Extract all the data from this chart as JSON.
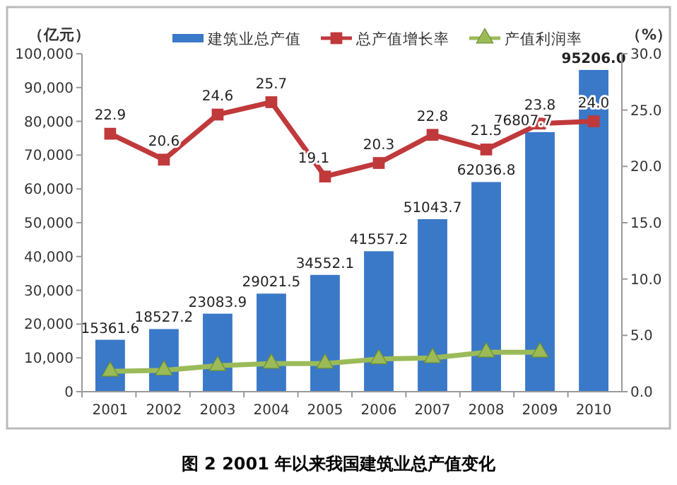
{
  "chart_data": {
    "type": "bar",
    "title": "图 2 2001 年以来我国建筑业总产值变化",
    "ylabel": "（亿元）",
    "y2label": "（%）",
    "categories": [
      "2001",
      "2002",
      "2003",
      "2004",
      "2005",
      "2006",
      "2007",
      "2008",
      "2009",
      "2010"
    ],
    "ylim": [
      0,
      100000
    ],
    "yticks": [
      {
        "value": 0,
        "label": "0"
      },
      {
        "value": 10000,
        "label": "10,000"
      },
      {
        "value": 20000,
        "label": "20,000"
      },
      {
        "value": 30000,
        "label": "30,000"
      },
      {
        "value": 40000,
        "label": "40,000"
      },
      {
        "value": 50000,
        "label": "50,000"
      },
      {
        "value": 60000,
        "label": "60,000"
      },
      {
        "value": 70000,
        "label": "70,000"
      },
      {
        "value": 80000,
        "label": "80,000"
      },
      {
        "value": 90000,
        "label": "90,000"
      },
      {
        "value": 100000,
        "label": "100,000"
      }
    ],
    "y2lim": [
      0,
      30
    ],
    "y2ticks": [
      {
        "value": 0,
        "label": "0.0"
      },
      {
        "value": 5,
        "label": "5.0"
      },
      {
        "value": 10,
        "label": "10.0"
      },
      {
        "value": 15,
        "label": "15.0"
      },
      {
        "value": 20,
        "label": "20.0"
      },
      {
        "value": 25,
        "label": "25.0"
      },
      {
        "value": 30,
        "label": "30.0"
      }
    ],
    "legend": "top",
    "grid": false,
    "series": [
      {
        "name": "建筑业总产值",
        "color": "#3a78c8",
        "values": [
          15361.6,
          18527.2,
          23083.9,
          29021.5,
          34552.1,
          41557.2,
          51043.7,
          62036.8,
          76807.7,
          95206.0
        ],
        "value_labels": [
          "15361.6",
          "18527.2",
          "23083.9",
          "29021.5",
          "34552.1",
          "41557.2",
          "51043.7",
          "62036.8",
          "76807.7",
          "95206.0"
        ]
      },
      {
        "name": "总产值增长率",
        "type": "line",
        "axis": "y2",
        "color": "#c0393b",
        "marker": "square",
        "values": [
          22.9,
          20.6,
          24.6,
          25.7,
          19.1,
          20.3,
          22.8,
          21.5,
          23.8,
          24.0
        ],
        "value_labels": [
          "22.9",
          "20.6",
          "24.6",
          "25.7",
          "19.1",
          "20.3",
          "22.8",
          "21.5",
          "23.8",
          "24.0"
        ]
      },
      {
        "name": "产值利润率",
        "type": "line",
        "axis": "y2",
        "color": "#9bbb59",
        "marker": "triangle",
        "values": [
          1.8,
          1.9,
          2.3,
          2.5,
          2.5,
          2.9,
          3.0,
          3.5,
          3.5,
          null
        ]
      }
    ]
  }
}
